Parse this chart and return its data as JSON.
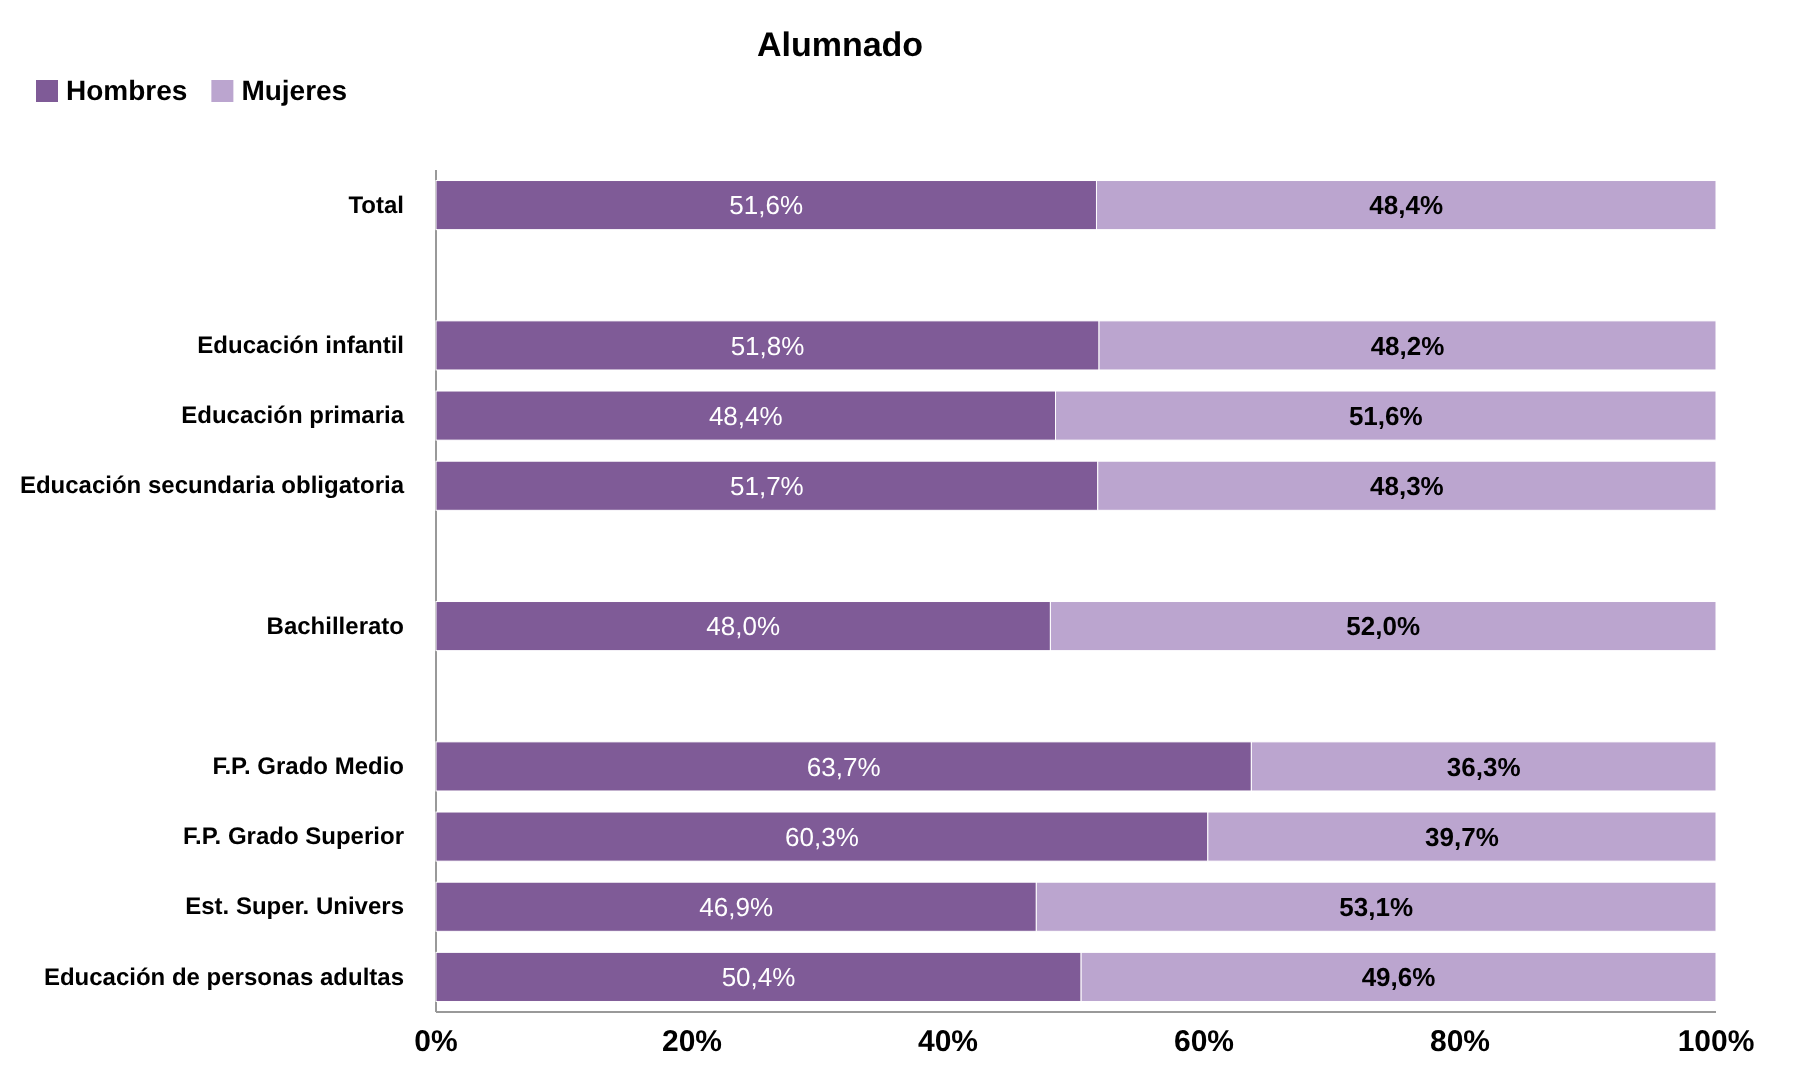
{
  "chart_data": {
    "type": "bar",
    "title": "Alumnado",
    "orientation": "horizontal",
    "stacked": true,
    "legend": "top left",
    "categories": [
      "Total",
      null,
      "Educación infantil",
      "Educación primaria",
      "Educación secundaria obligatoria",
      null,
      "Bachillerato",
      null,
      "F.P. Grado Medio",
      "F.P. Grado Superior",
      "Est. Super. Univers",
      "Educación de personas adultas"
    ],
    "series": [
      {
        "name": "Hombres",
        "color": "#7f5b97",
        "values": [
          51.6,
          null,
          51.8,
          48.4,
          51.7,
          null,
          48.0,
          null,
          63.7,
          60.3,
          46.9,
          50.4
        ],
        "value_labels": [
          "51,6%",
          null,
          "51,8%",
          "48,4%",
          "51,7%",
          null,
          "48,0%",
          null,
          "63,7%",
          "60,3%",
          "46,9%",
          "50,4%"
        ]
      },
      {
        "name": "Mujeres",
        "color": "#bba5cf",
        "values": [
          48.4,
          null,
          48.2,
          51.6,
          48.3,
          null,
          52.0,
          null,
          36.3,
          39.7,
          53.1,
          49.6
        ],
        "value_labels": [
          "48,4%",
          null,
          "48,2%",
          "51,6%",
          "48,3%",
          null,
          "52,0%",
          null,
          "36,3%",
          "39,7%",
          "53,1%",
          "49,6%"
        ]
      }
    ],
    "xlim": [
      0,
      100
    ],
    "xticks": [
      {
        "value": 0,
        "label": "0%"
      },
      {
        "value": 20,
        "label": "20%"
      },
      {
        "value": 40,
        "label": "40%"
      },
      {
        "value": 60,
        "label": "60%"
      },
      {
        "value": 80,
        "label": "80%"
      },
      {
        "value": 100,
        "label": "100%"
      }
    ]
  }
}
